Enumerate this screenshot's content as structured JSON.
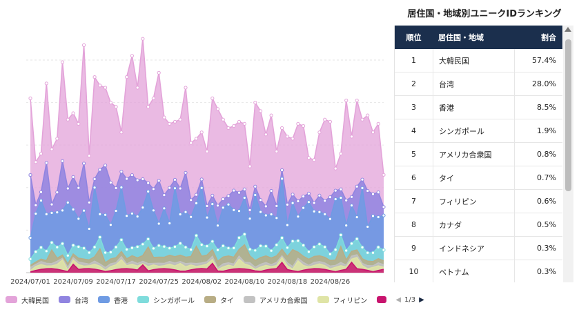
{
  "chart_data": {
    "type": "area",
    "stacked": true,
    "x_tick_labels": [
      "2024/07/01",
      "2024/07/09",
      "2024/07/17",
      "2024/07/25",
      "2024/08/02",
      "2024/08/10",
      "2024/08/18",
      "2024/08/26"
    ],
    "series": [
      {
        "name": "大韓民国",
        "color": "#e3a3d9"
      },
      {
        "name": "台湾",
        "color": "#9084e0"
      },
      {
        "name": "香港",
        "color": "#6f9be3"
      },
      {
        "name": "シンガポール",
        "color": "#7fdcdc"
      },
      {
        "name": "タイ",
        "color": "#b8ad85"
      },
      {
        "name": "アメリカ合衆国",
        "color": "#c2c2c2"
      },
      {
        "name": "フィリピン",
        "color": "#dfe4a6"
      },
      {
        "name": "",
        "color": "#c8146e"
      }
    ],
    "totals": [
      82,
      52,
      56,
      89,
      58,
      63,
      99,
      72,
      75,
      70,
      107,
      55,
      92,
      88,
      87,
      80,
      78,
      66,
      92,
      102,
      87,
      110,
      78,
      82,
      94,
      73,
      70,
      71,
      72,
      87,
      61,
      63,
      66,
      57,
      82,
      77,
      72,
      68,
      69,
      71,
      70,
      50,
      80,
      76,
      65,
      74,
      57,
      68,
      64,
      63,
      70,
      69,
      54,
      53,
      66,
      72,
      71,
      49,
      56,
      81,
      64,
      81,
      72,
      74,
      66,
      70,
      46
    ]
  },
  "legend": {
    "items": [
      "大韓民国",
      "台湾",
      "香港",
      "シンガポール",
      "タイ",
      "アメリカ合衆国",
      "フィリピン"
    ],
    "pager": "1/3"
  },
  "ranking": {
    "title": "居住国・地域別ユニークIDランキング",
    "header": {
      "rank": "順位",
      "name": "居住国・地域",
      "share": "割合"
    },
    "rows": [
      {
        "rank": "1",
        "name": "大韓民国",
        "share": "57.4%"
      },
      {
        "rank": "2",
        "name": "台湾",
        "share": "28.0%"
      },
      {
        "rank": "3",
        "name": "香港",
        "share": "8.5%"
      },
      {
        "rank": "4",
        "name": "シンガポール",
        "share": "1.9%"
      },
      {
        "rank": "5",
        "name": "アメリカ合衆国",
        "share": "0.8%"
      },
      {
        "rank": "6",
        "name": "タイ",
        "share": "0.7%"
      },
      {
        "rank": "7",
        "name": "フィリピン",
        "share": "0.6%"
      },
      {
        "rank": "8",
        "name": "カナダ",
        "share": "0.5%"
      },
      {
        "rank": "9",
        "name": "インドネシア",
        "share": "0.3%"
      },
      {
        "rank": "10",
        "name": "ベトナム",
        "share": "0.3%"
      }
    ]
  }
}
